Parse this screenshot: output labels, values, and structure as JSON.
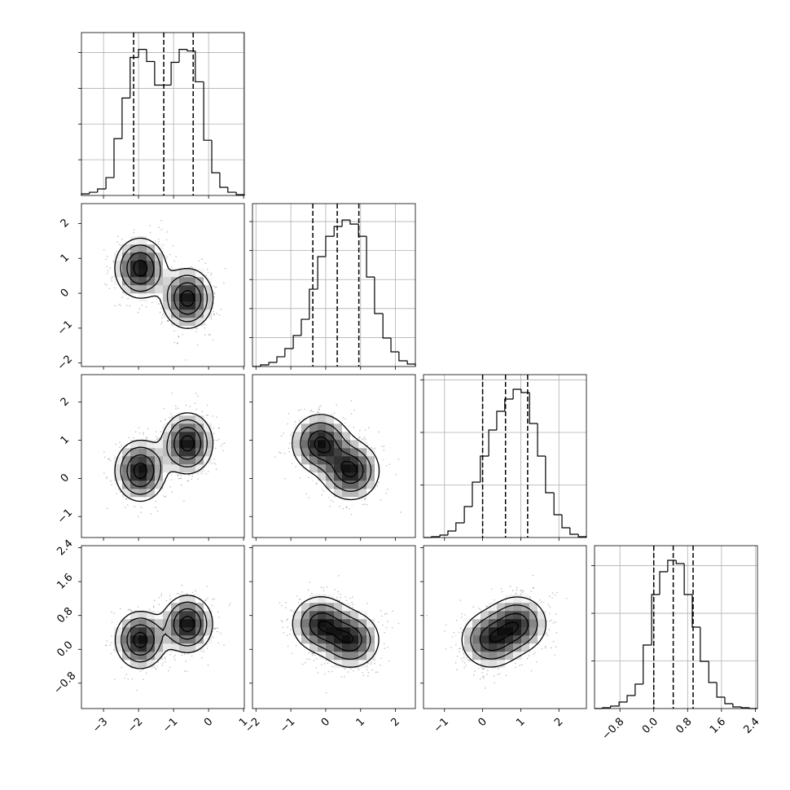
{
  "chart_data": {
    "type": "corner",
    "variables": [
      {
        "lim": [
          -3.63,
          1.02
        ],
        "ticks": [
          {
            "value": -3,
            "label": "−3"
          },
          {
            "value": -2,
            "label": "−2"
          },
          {
            "value": -1,
            "label": "−1"
          },
          0,
          1
        ]
      },
      {
        "lim": [
          -2.1,
          2.57
        ],
        "ticks": [
          {
            "value": -2,
            "label": "−2"
          },
          {
            "value": -1,
            "label": "−1"
          },
          0,
          1,
          2
        ]
      },
      {
        "lim": [
          -1.55,
          2.72
        ],
        "ticks": [
          {
            "value": -1,
            "label": "−1"
          },
          0,
          1,
          2
        ]
      },
      {
        "lim": [
          -1.4,
          2.45
        ],
        "ticks": [
          {
            "value": -0.8,
            "label": "−0.8"
          },
          {
            "value": 0,
            "label": "0.0"
          },
          0.8,
          1.6,
          2.4
        ]
      }
    ],
    "histograms": [
      {
        "bins": [
          -3.63,
          -3.4,
          -3.17,
          -2.93,
          -2.7,
          -2.47,
          -2.24,
          -2.0,
          -1.77,
          -1.54,
          -1.31,
          -1.07,
          -0.84,
          -0.61,
          -0.38,
          -0.14,
          0.09,
          0.32,
          0.55,
          0.79,
          1.02
        ],
        "counts": [
          23,
          45,
          91,
          250,
          795,
          1364,
          1932,
          2045,
          1875,
          1545,
          1545,
          1864,
          2045,
          2023,
          1591,
          773,
          318,
          114,
          45,
          11
        ],
        "ylim": [
          0,
          2280
        ],
        "yticks": [
          500,
          1000,
          1500,
          2000
        ],
        "quantiles": [
          -2.14,
          -1.28,
          -0.44
        ]
      },
      {
        "bins": [
          -2.1,
          -1.87,
          -1.63,
          -1.4,
          -1.17,
          -0.93,
          -0.7,
          -0.47,
          -0.23,
          0.0,
          0.24,
          0.47,
          0.7,
          0.94,
          1.17,
          1.4,
          1.64,
          1.87,
          2.1,
          2.34,
          2.57
        ],
        "counts": [
          0,
          28,
          70,
          168,
          309,
          534,
          814,
          1334,
          1895,
          2246,
          2415,
          2527,
          2457,
          2246,
          1544,
          913,
          491,
          253,
          98,
          42
        ],
        "ylim": [
          0,
          2810
        ],
        "yticks": [
          500,
          1000,
          1500,
          2000,
          2500
        ],
        "quantiles": [
          -0.37,
          0.33,
          0.95
        ]
      },
      {
        "bins": [
          -1.55,
          -1.34,
          -1.12,
          -0.91,
          -0.7,
          -0.48,
          -0.27,
          -0.06,
          0.16,
          0.37,
          0.58,
          0.8,
          1.01,
          1.23,
          1.44,
          1.65,
          1.87,
          2.08,
          2.29,
          2.51,
          2.72
        ],
        "counts": [
          0,
          16,
          47,
          124,
          279,
          589,
          1054,
          1550,
          2046,
          2403,
          2635,
          2821,
          2759,
          2170,
          1550,
          853,
          434,
          186,
          62,
          16
        ],
        "ylim": [
          0,
          3100
        ],
        "yticks": [
          1000,
          2000,
          3000
        ],
        "quantiles": [
          0.0,
          0.6,
          1.18
        ]
      },
      {
        "bins": [
          -1.4,
          -1.21,
          -1.02,
          -0.82,
          -0.63,
          -0.44,
          -0.25,
          -0.05,
          0.14,
          0.33,
          0.53,
          0.72,
          0.91,
          1.1,
          1.3,
          1.49,
          1.68,
          1.87,
          2.07,
          2.26,
          2.45
        ],
        "counts": [
          0,
          17,
          51,
          137,
          274,
          513,
          1334,
          2394,
          2873,
          3112,
          3044,
          2394,
          1710,
          992,
          547,
          239,
          103,
          34,
          17,
          0
        ],
        "ylim": [
          0,
          3420
        ],
        "yticks": [
          1000,
          2000,
          3000
        ],
        "quantiles": [
          0.0,
          0.46,
          0.93
        ]
      }
    ],
    "components": [
      {
        "weight": 0.5,
        "mean": [
          -1.95,
          0.72,
          0.2,
          0.22
        ],
        "std": [
          0.38,
          0.45,
          0.42,
          0.36
        ]
      },
      {
        "weight": 0.5,
        "mean": [
          -0.6,
          -0.15,
          0.92,
          0.6
        ],
        "std": [
          0.38,
          0.45,
          0.42,
          0.36
        ]
      }
    ]
  }
}
